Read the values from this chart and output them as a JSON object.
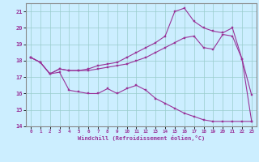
{
  "xlabel": "Windchill (Refroidissement éolien,°C)",
  "background_color": "#cceeff",
  "line_color": "#993399",
  "grid_color": "#99cccc",
  "xlim": [
    -0.5,
    23.5
  ],
  "ylim": [
    14,
    21.5
  ],
  "yticks": [
    14,
    15,
    16,
    17,
    18,
    19,
    20,
    21
  ],
  "xticks": [
    0,
    1,
    2,
    3,
    4,
    5,
    6,
    7,
    8,
    9,
    10,
    11,
    12,
    13,
    14,
    15,
    16,
    17,
    18,
    19,
    20,
    21,
    22,
    23
  ],
  "series1_x": [
    0,
    1,
    2,
    3,
    4,
    5,
    6,
    7,
    8,
    9,
    10,
    11,
    12,
    13,
    14,
    15,
    16,
    17,
    18,
    19,
    20,
    21,
    22,
    23
  ],
  "series1_y": [
    18.2,
    17.9,
    17.2,
    17.3,
    16.2,
    16.1,
    16.0,
    16.0,
    16.3,
    16.0,
    16.3,
    16.5,
    16.2,
    15.7,
    15.4,
    15.1,
    14.8,
    14.6,
    14.4,
    14.3,
    14.3,
    14.3,
    14.3,
    14.3
  ],
  "series2_x": [
    0,
    1,
    2,
    3,
    4,
    5,
    6,
    7,
    8,
    9,
    10,
    11,
    12,
    13,
    14,
    15,
    16,
    17,
    18,
    19,
    20,
    21,
    22,
    23
  ],
  "series2_y": [
    18.2,
    17.9,
    17.2,
    17.5,
    17.4,
    17.4,
    17.4,
    17.5,
    17.6,
    17.7,
    17.8,
    18.0,
    18.2,
    18.5,
    18.8,
    19.1,
    19.4,
    19.5,
    18.8,
    18.7,
    19.6,
    19.5,
    18.1,
    15.9
  ],
  "series3_x": [
    0,
    1,
    2,
    3,
    4,
    5,
    6,
    7,
    8,
    9,
    10,
    11,
    12,
    13,
    14,
    15,
    16,
    17,
    18,
    19,
    20,
    21,
    22,
    23
  ],
  "series3_y": [
    18.2,
    17.9,
    17.2,
    17.5,
    17.4,
    17.4,
    17.5,
    17.7,
    17.8,
    17.9,
    18.2,
    18.5,
    18.8,
    19.1,
    19.5,
    21.0,
    21.2,
    20.4,
    20.0,
    19.8,
    19.7,
    20.0,
    18.1,
    14.3
  ]
}
